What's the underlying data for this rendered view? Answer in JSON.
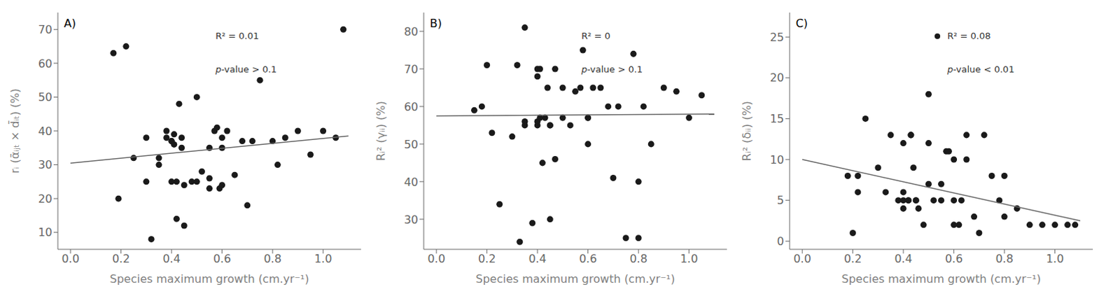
{
  "chart_data": [
    {
      "type": "scatter",
      "title": "A)",
      "x_label": "Species maximum growth (cm.yr⁻¹)",
      "y_label": "rᵢ (ᾱᵢⱼₜ × d̄ᵢₜ) (%)",
      "xlim": [
        -0.05,
        1.15
      ],
      "ylim": [
        5,
        75
      ],
      "xticks": [
        {
          "value": 0.0,
          "label": "0.0"
        },
        0.2,
        0.4,
        0.6,
        0.8,
        {
          "value": 1.0,
          "label": "1.0"
        }
      ],
      "yticks": [
        10,
        20,
        30,
        40,
        50,
        60,
        70
      ],
      "grid": false,
      "annotations": [
        {
          "text": "R² = 0.01"
        },
        {
          "text": "p-value > 0.1"
        }
      ],
      "series": [
        {
          "type": "scatter",
          "color": "#1a1a1a",
          "x": [
            0.17,
            0.22,
            0.19,
            0.25,
            0.32,
            0.35,
            0.38,
            0.38,
            0.4,
            0.4,
            0.41,
            0.41,
            0.42,
            0.43,
            0.44,
            0.44,
            0.45,
            0.48,
            0.5,
            0.52,
            0.55,
            0.55,
            0.57,
            0.58,
            0.59,
            0.6,
            0.6,
            0.62,
            0.65,
            0.68,
            0.7,
            0.72,
            0.75,
            0.8,
            0.82,
            0.85,
            0.9,
            0.95,
            1.0,
            1.05,
            1.08,
            0.3,
            0.3,
            0.35,
            0.4,
            0.42,
            0.45,
            0.5,
            0.55,
            0.6
          ],
          "values": [
            63,
            65,
            20,
            32,
            8,
            32,
            38,
            40,
            37,
            37,
            36,
            39,
            25,
            48,
            35,
            38,
            24,
            25,
            50,
            28,
            35,
            26,
            40,
            41,
            23,
            35,
            24,
            40,
            27,
            37,
            18,
            37,
            55,
            37,
            30,
            38,
            40,
            33,
            40,
            38,
            70,
            38,
            25,
            30,
            25,
            14,
            12,
            25,
            23,
            38
          ]
        },
        {
          "type": "line",
          "color": "#666666",
          "x": [
            0.0,
            1.1
          ],
          "values": [
            30.5,
            38.5
          ]
        }
      ]
    },
    {
      "type": "scatter",
      "title": "B)",
      "x_label": "Species maximum growth (cm.yr⁻¹)",
      "y_label": "Rᵢ² (γᵢᵢ) (%)",
      "xlim": [
        -0.05,
        1.15
      ],
      "ylim": [
        22,
        85
      ],
      "xticks": [
        {
          "value": 0.0,
          "label": "0.0"
        },
        0.2,
        0.4,
        0.6,
        0.8,
        {
          "value": 1.0,
          "label": "1.0"
        }
      ],
      "yticks": [
        30,
        40,
        50,
        60,
        70,
        80
      ],
      "grid": false,
      "annotations": [
        {
          "text": "R² = 0"
        },
        {
          "text": "p-value > 0.1"
        }
      ],
      "series": [
        {
          "type": "scatter",
          "color": "#1a1a1a",
          "x": [
            0.15,
            0.18,
            0.2,
            0.22,
            0.25,
            0.3,
            0.32,
            0.33,
            0.35,
            0.35,
            0.38,
            0.4,
            0.4,
            0.4,
            0.41,
            0.41,
            0.42,
            0.43,
            0.44,
            0.45,
            0.45,
            0.45,
            0.47,
            0.47,
            0.5,
            0.5,
            0.53,
            0.55,
            0.57,
            0.58,
            0.6,
            0.6,
            0.62,
            0.65,
            0.68,
            0.7,
            0.72,
            0.75,
            0.78,
            0.8,
            0.82,
            0.85,
            0.9,
            0.95,
            1.0,
            1.05,
            0.35,
            0.4,
            0.6,
            0.8
          ],
          "values": [
            59,
            60,
            71,
            53,
            34,
            52,
            71,
            24,
            55,
            56,
            29,
            55,
            56,
            70,
            57,
            70,
            45,
            57,
            65,
            55,
            55,
            30,
            46,
            70,
            57,
            65,
            55,
            64,
            65,
            75,
            57,
            57,
            65,
            65,
            60,
            41,
            60,
            25,
            74,
            40,
            60,
            50,
            65,
            64,
            57,
            63,
            81,
            68,
            50,
            25
          ]
        },
        {
          "type": "line",
          "color": "#666666",
          "x": [
            0.0,
            1.1
          ],
          "values": [
            57.5,
            58.0
          ]
        }
      ]
    },
    {
      "type": "scatter",
      "title": "C)",
      "x_label": "Species maximum growth (cm.yr⁻¹)",
      "y_label": "Rᵢ² (δᵢᵢ) (%)",
      "xlim": [
        -0.05,
        1.15
      ],
      "ylim": [
        -1,
        28
      ],
      "xticks": [
        {
          "value": 0.0,
          "label": "0.0"
        },
        0.2,
        0.4,
        0.6,
        0.8,
        {
          "value": 1.0,
          "label": "1.0"
        }
      ],
      "yticks": [
        0,
        5,
        10,
        15,
        20,
        25
      ],
      "grid": false,
      "annotations": [
        {
          "text": "R² = 0.08",
          "marker": "circle"
        },
        {
          "text": "p-value < 0.01"
        }
      ],
      "series": [
        {
          "type": "scatter",
          "color": "#1a1a1a",
          "x": [
            0.18,
            0.2,
            0.22,
            0.25,
            0.3,
            0.33,
            0.35,
            0.38,
            0.4,
            0.4,
            0.4,
            0.42,
            0.42,
            0.43,
            0.43,
            0.44,
            0.45,
            0.45,
            0.46,
            0.48,
            0.5,
            0.5,
            0.52,
            0.55,
            0.55,
            0.57,
            0.58,
            0.6,
            0.6,
            0.62,
            0.63,
            0.65,
            0.65,
            0.68,
            0.7,
            0.72,
            0.75,
            0.78,
            0.8,
            0.8,
            0.85,
            0.9,
            0.95,
            1.0,
            1.05,
            1.08,
            0.22,
            0.4,
            0.5,
            0.6
          ],
          "values": [
            8,
            1,
            8,
            15,
            9,
            6,
            13,
            5,
            5,
            6,
            12,
            5,
            5,
            13,
            13,
            9,
            5,
            5,
            4,
            2,
            18,
            7,
            5,
            5,
            7,
            11,
            11,
            5,
            10,
            2,
            5,
            10,
            13,
            3,
            1,
            13,
            8,
            5,
            3,
            8,
            4,
            2,
            2,
            2,
            2,
            2,
            6,
            4,
            12,
            2
          ]
        },
        {
          "type": "line",
          "color": "#666666",
          "x": [
            0.0,
            1.1
          ],
          "values": [
            10.0,
            2.5
          ]
        }
      ]
    }
  ]
}
